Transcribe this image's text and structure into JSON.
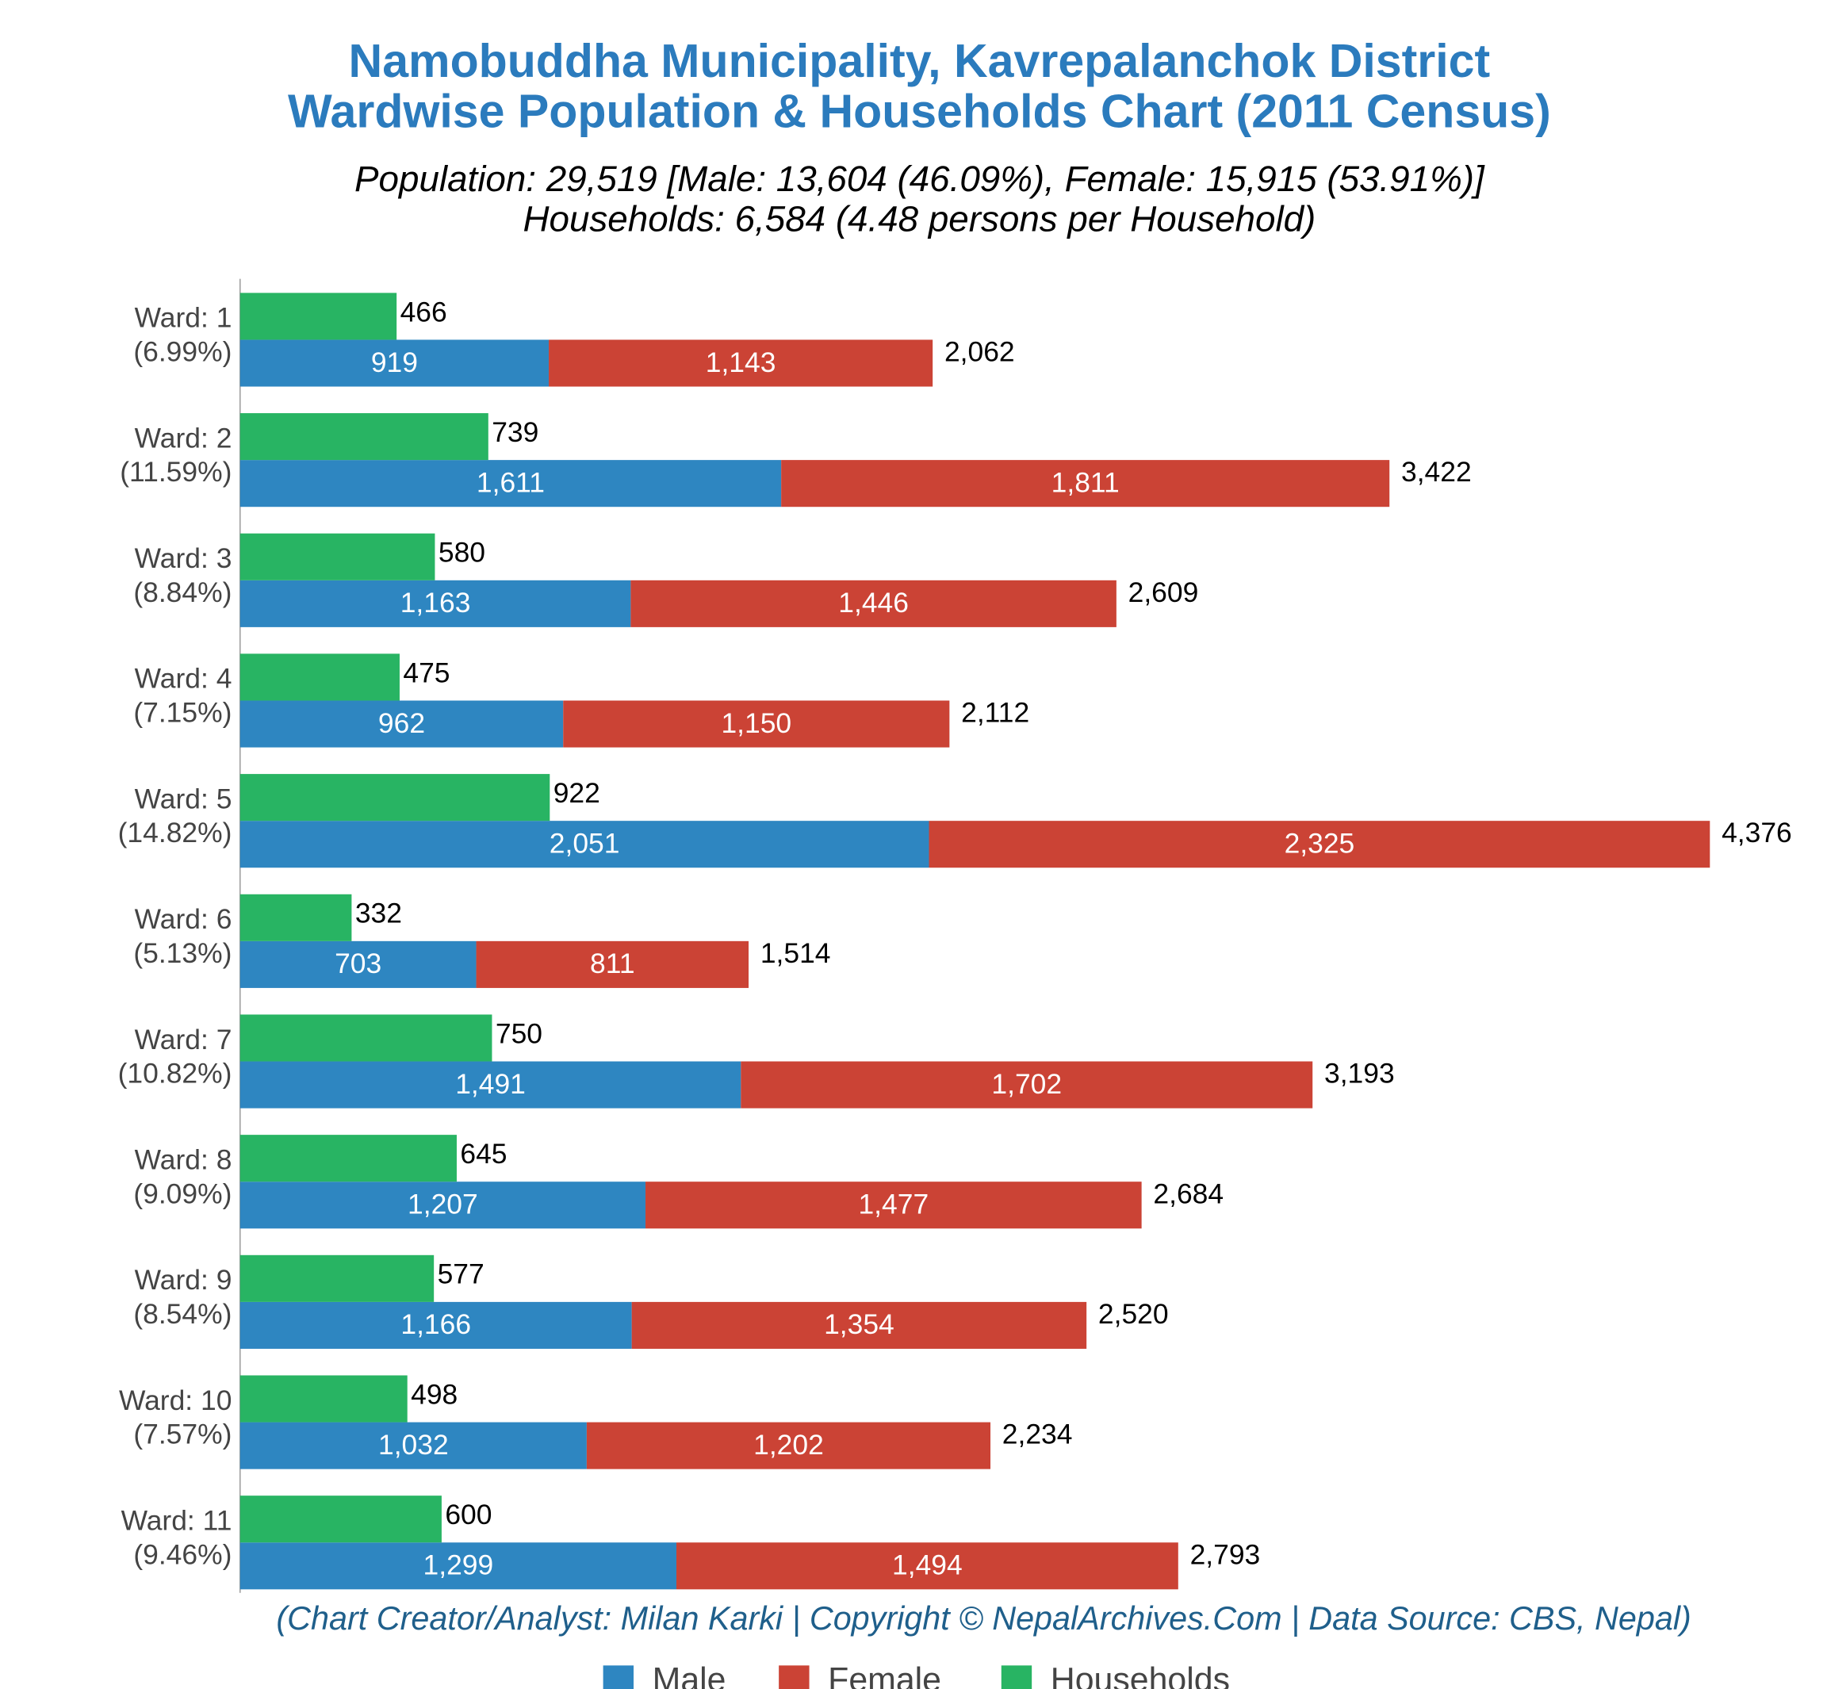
{
  "chart_data": {
    "type": "stacked_hbar",
    "title": [
      "Namobuddha Municipality, Kavrepalanchok District",
      "Wardwise Population & Households Chart (2011 Census)"
    ],
    "subtitle": [
      "Population: 29,519 [Male: 13,604 (46.09%), Female: 15,915 (53.91%)]",
      "Households: 6,584 (4.48 persons per Household)"
    ],
    "footer": "(Chart Creator/Analyst: Milan Karki | Copyright © NepalArchives.Com | Data Source: CBS, Nepal)",
    "categories": [
      "Ward: 1",
      "Ward: 2",
      "Ward: 3",
      "Ward: 4",
      "Ward: 5",
      "Ward: 6",
      "Ward: 7",
      "Ward: 8",
      "Ward: 9",
      "Ward: 10",
      "Ward: 11"
    ],
    "category_shares": [
      "(6.99%)",
      "(11.59%)",
      "(8.84%)",
      "(7.15%)",
      "(14.82%)",
      "(5.13%)",
      "(10.82%)",
      "(9.09%)",
      "(8.54%)",
      "(7.57%)",
      "(9.46%)"
    ],
    "series": [
      {
        "name": "Male",
        "color": "#2e86c1",
        "stack": "population",
        "values": [
          919,
          1611,
          1163,
          962,
          2051,
          703,
          1491,
          1207,
          1166,
          1032,
          1299
        ],
        "value_labels": [
          "919",
          "1,611",
          "1,163",
          "962",
          "2,051",
          "703",
          "1,491",
          "1,207",
          "1,166",
          "1,032",
          "1,299"
        ]
      },
      {
        "name": "Female",
        "color": "#cb4335",
        "stack": "population",
        "values": [
          1143,
          1811,
          1446,
          1150,
          2325,
          811,
          1702,
          1477,
          1354,
          1202,
          1494
        ],
        "value_labels": [
          "1,143",
          "1,811",
          "1,446",
          "1,150",
          "2,325",
          "811",
          "1,702",
          "1,477",
          "1,354",
          "1,202",
          "1,494"
        ]
      },
      {
        "name": "Households",
        "color": "#28b463",
        "stack": "households",
        "values": [
          466,
          739,
          580,
          475,
          922,
          332,
          750,
          645,
          577,
          498,
          600
        ]
      }
    ],
    "totals": {
      "values": [
        2062,
        3422,
        2609,
        2112,
        4376,
        1514,
        3193,
        2684,
        2520,
        2234,
        2793
      ],
      "value_labels": [
        "2,062",
        "3,422",
        "2,609",
        "2,112",
        "4,376",
        "1,514",
        "3,193",
        "2,684",
        "2,520",
        "2,234",
        "2,793"
      ]
    },
    "legend": "bottom"
  }
}
